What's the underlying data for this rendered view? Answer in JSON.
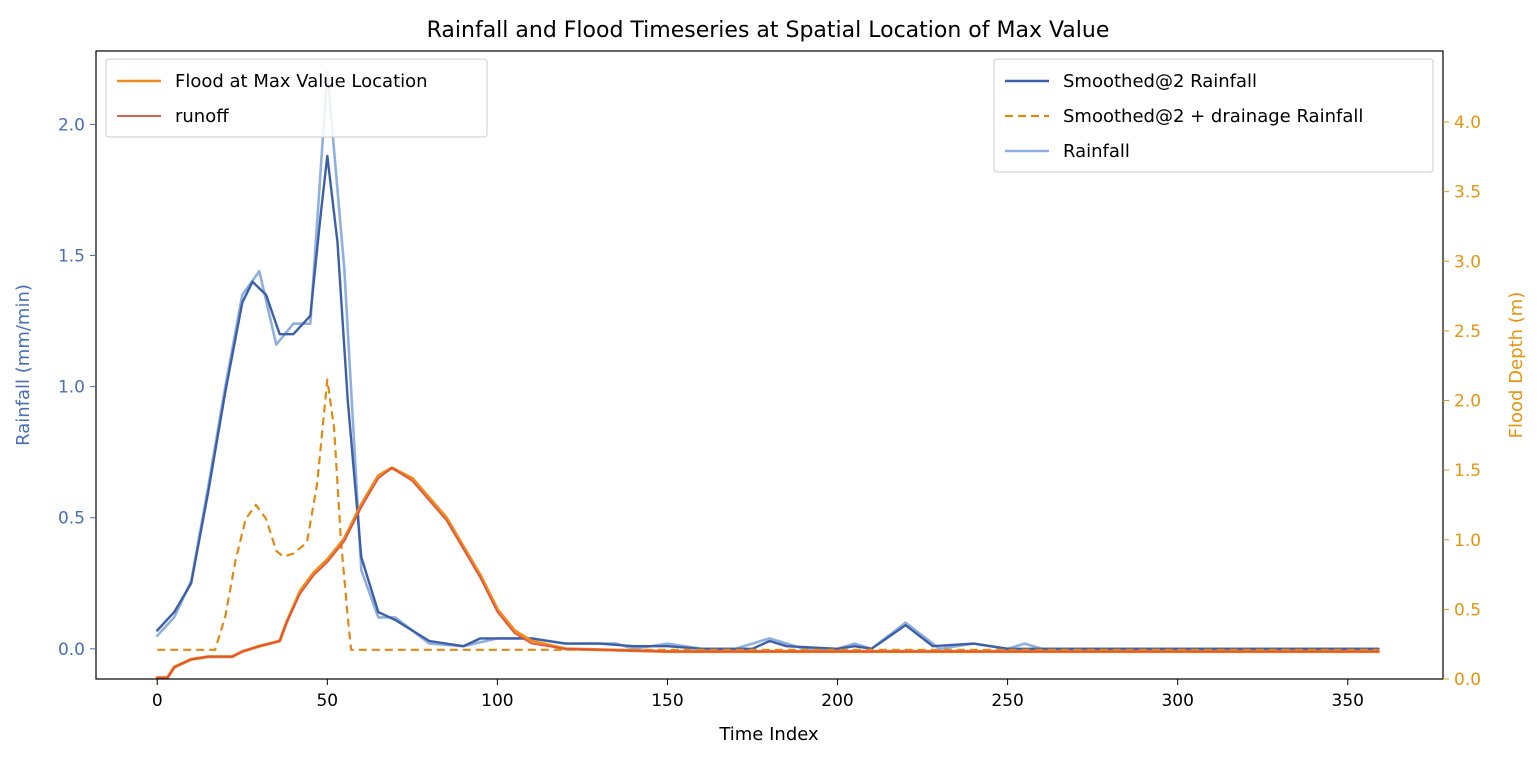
{
  "colors": {
    "rain_axis": "#4a6fb5",
    "flood_axis": "#e8940f",
    "smoothed": "#3d5fa8",
    "rainfall_raw": "#8fb0de",
    "drainage": "#e08a12",
    "flood": "#f08c1f",
    "runoff": "#dc4a3a"
  },
  "chart_data": {
    "type": "line",
    "title": "Rainfall and Flood Timeseries at Spatial Location of Max Value",
    "xlabel": "Time Index",
    "ylabel_left": "Rainfall (mm/min)",
    "ylabel_right": "Flood Depth (m)",
    "xlim": [
      -18,
      378
    ],
    "ylim_left": [
      -0.115,
      2.28
    ],
    "ylim_right": [
      0,
      4.51
    ],
    "xticks": [
      "0",
      "50",
      "100",
      "150",
      "200",
      "250",
      "300",
      "350"
    ],
    "yticks_left": [
      "0.0",
      "0.5",
      "1.0",
      "1.5",
      "2.0"
    ],
    "yticks_right": [
      "0.0",
      "0.5",
      "1.0",
      "1.5",
      "2.0",
      "2.5",
      "3.0",
      "3.5",
      "4.0"
    ],
    "grid": false,
    "legends": {
      "upper_left": [
        "Flood at Max Value Location",
        "runoff"
      ],
      "upper_right": [
        "Smoothed@2 Rainfall",
        "Smoothed@2 + drainage Rainfall",
        "Rainfall"
      ]
    },
    "series": [
      {
        "name": "Rainfall",
        "axis": "left",
        "style": "solid",
        "points": [
          [
            0,
            0.05
          ],
          [
            5,
            0.12
          ],
          [
            10,
            0.26
          ],
          [
            15,
            0.62
          ],
          [
            20,
            1.0
          ],
          [
            25,
            1.35
          ],
          [
            30,
            1.44
          ],
          [
            35,
            1.16
          ],
          [
            40,
            1.24
          ],
          [
            45,
            1.24
          ],
          [
            50,
            2.2
          ],
          [
            55,
            1.45
          ],
          [
            60,
            0.3
          ],
          [
            65,
            0.12
          ],
          [
            70,
            0.12
          ],
          [
            80,
            0.02
          ],
          [
            90,
            0.01
          ],
          [
            100,
            0.04
          ],
          [
            110,
            0.04
          ],
          [
            120,
            0.02
          ],
          [
            130,
            0.02
          ],
          [
            135,
            0.02
          ],
          [
            140,
            0.0
          ],
          [
            150,
            0.02
          ],
          [
            160,
            0.0
          ],
          [
            170,
            0.0
          ],
          [
            180,
            0.04
          ],
          [
            190,
            0.0
          ],
          [
            200,
            0.0
          ],
          [
            205,
            0.02
          ],
          [
            210,
            0.0
          ],
          [
            220,
            0.1
          ],
          [
            230,
            0.0
          ],
          [
            240,
            0.02
          ],
          [
            250,
            0.0
          ],
          [
            255,
            0.02
          ],
          [
            260,
            0.0
          ],
          [
            300,
            0.0
          ],
          [
            359,
            0.0
          ]
        ]
      },
      {
        "name": "Smoothed@2 Rainfall",
        "axis": "left",
        "style": "solid",
        "points": [
          [
            0,
            0.07
          ],
          [
            5,
            0.14
          ],
          [
            10,
            0.25
          ],
          [
            15,
            0.6
          ],
          [
            20,
            0.98
          ],
          [
            25,
            1.32
          ],
          [
            28,
            1.4
          ],
          [
            32,
            1.35
          ],
          [
            36,
            1.2
          ],
          [
            40,
            1.2
          ],
          [
            45,
            1.27
          ],
          [
            48,
            1.65
          ],
          [
            50,
            1.88
          ],
          [
            53,
            1.55
          ],
          [
            56,
            0.95
          ],
          [
            60,
            0.35
          ],
          [
            65,
            0.14
          ],
          [
            70,
            0.11
          ],
          [
            80,
            0.03
          ],
          [
            90,
            0.01
          ],
          [
            95,
            0.04
          ],
          [
            100,
            0.04
          ],
          [
            110,
            0.04
          ],
          [
            120,
            0.02
          ],
          [
            130,
            0.02
          ],
          [
            140,
            0.01
          ],
          [
            150,
            0.01
          ],
          [
            160,
            0.0
          ],
          [
            175,
            0.0
          ],
          [
            180,
            0.03
          ],
          [
            185,
            0.01
          ],
          [
            200,
            0.0
          ],
          [
            205,
            0.01
          ],
          [
            210,
            0.0
          ],
          [
            220,
            0.09
          ],
          [
            228,
            0.01
          ],
          [
            240,
            0.02
          ],
          [
            250,
            0.0
          ],
          [
            300,
            0.0
          ],
          [
            359,
            0.0
          ]
        ]
      },
      {
        "name": "Smoothed@2 + drainage Rainfall",
        "axis": "right",
        "style": "dashed",
        "points": [
          [
            0,
            0.21
          ],
          [
            17,
            0.21
          ],
          [
            20,
            0.45
          ],
          [
            23,
            0.85
          ],
          [
            26,
            1.15
          ],
          [
            29,
            1.25
          ],
          [
            32,
            1.15
          ],
          [
            35,
            0.92
          ],
          [
            37,
            0.88
          ],
          [
            40,
            0.9
          ],
          [
            44,
            0.98
          ],
          [
            47,
            1.4
          ],
          [
            50,
            2.15
          ],
          [
            52,
            1.8
          ],
          [
            54,
            1.0
          ],
          [
            56,
            0.45
          ],
          [
            57,
            0.21
          ],
          [
            100,
            0.21
          ],
          [
            150,
            0.21
          ],
          [
            200,
            0.21
          ],
          [
            250,
            0.21
          ],
          [
            300,
            0.21
          ],
          [
            359,
            0.21
          ]
        ]
      },
      {
        "name": "Flood at Max Value Location",
        "axis": "left",
        "style": "solid",
        "points": [
          [
            0,
            -0.11
          ],
          [
            3,
            -0.11
          ],
          [
            5,
            -0.07
          ],
          [
            10,
            -0.04
          ],
          [
            15,
            -0.03
          ],
          [
            22,
            -0.03
          ],
          [
            25,
            -0.01
          ],
          [
            30,
            0.01
          ],
          [
            36,
            0.03
          ],
          [
            38,
            0.1
          ],
          [
            42,
            0.22
          ],
          [
            46,
            0.29
          ],
          [
            50,
            0.34
          ],
          [
            55,
            0.42
          ],
          [
            60,
            0.55
          ],
          [
            65,
            0.66
          ],
          [
            69,
            0.69
          ],
          [
            75,
            0.65
          ],
          [
            85,
            0.5
          ],
          [
            95,
            0.28
          ],
          [
            100,
            0.15
          ],
          [
            105,
            0.07
          ],
          [
            110,
            0.03
          ],
          [
            120,
            0.0
          ],
          [
            150,
            -0.01
          ],
          [
            200,
            -0.01
          ],
          [
            250,
            -0.01
          ],
          [
            300,
            -0.01
          ],
          [
            359,
            -0.01
          ]
        ]
      },
      {
        "name": "runoff",
        "axis": "left",
        "style": "solid",
        "points": [
          [
            0,
            -0.11
          ],
          [
            3,
            -0.11
          ],
          [
            5,
            -0.07
          ],
          [
            10,
            -0.04
          ],
          [
            15,
            -0.03
          ],
          [
            22,
            -0.03
          ],
          [
            25,
            -0.01
          ],
          [
            30,
            0.01
          ],
          [
            36,
            0.03
          ],
          [
            38,
            0.1
          ],
          [
            42,
            0.21
          ],
          [
            46,
            0.28
          ],
          [
            50,
            0.33
          ],
          [
            55,
            0.41
          ],
          [
            60,
            0.54
          ],
          [
            65,
            0.65
          ],
          [
            69,
            0.69
          ],
          [
            75,
            0.64
          ],
          [
            85,
            0.49
          ],
          [
            95,
            0.27
          ],
          [
            100,
            0.14
          ],
          [
            105,
            0.06
          ],
          [
            110,
            0.02
          ],
          [
            120,
            0.0
          ],
          [
            150,
            -0.01
          ],
          [
            200,
            -0.01
          ],
          [
            250,
            -0.01
          ],
          [
            300,
            -0.01
          ],
          [
            359,
            -0.01
          ]
        ]
      }
    ]
  }
}
